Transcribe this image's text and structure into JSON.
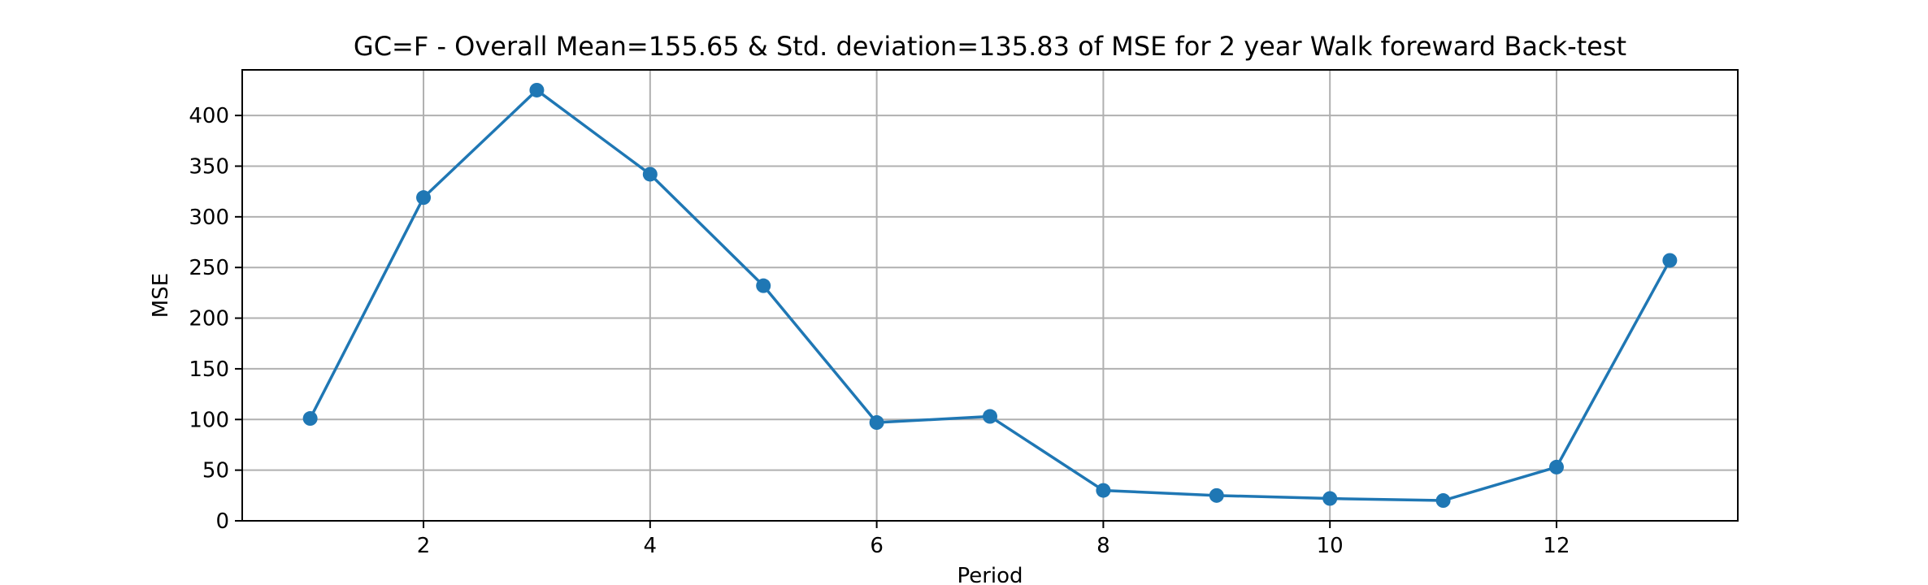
{
  "chart_data": {
    "type": "line",
    "title": "GC=F - Overall Mean=155.65 & Std. deviation=135.83 of MSE for 2 year Walk foreward Back-test",
    "xlabel": "Period",
    "ylabel": "MSE",
    "xlim": [
      0.4,
      13.6
    ],
    "ylim": [
      0,
      445
    ],
    "xticks": [
      2,
      4,
      6,
      8,
      10,
      12
    ],
    "yticks": [
      0,
      50,
      100,
      150,
      200,
      250,
      300,
      350,
      400
    ],
    "grid": true,
    "series": [
      {
        "color": "#1f77b4",
        "marker": "circle",
        "x": [
          1,
          2,
          3,
          4,
          5,
          6,
          7,
          8,
          9,
          10,
          11,
          12,
          13
        ],
        "y": [
          101,
          319,
          425,
          342,
          232,
          97,
          103,
          30,
          25,
          22,
          20,
          53,
          257
        ]
      }
    ]
  }
}
